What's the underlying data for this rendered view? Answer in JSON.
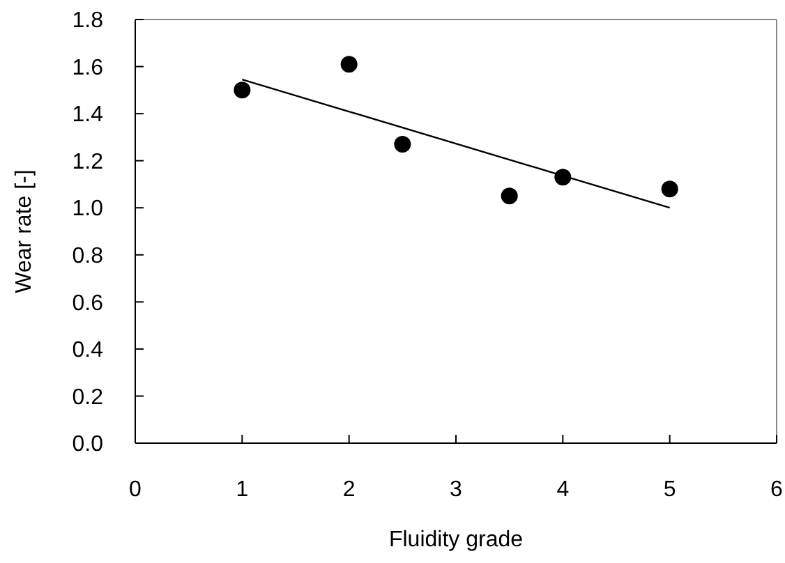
{
  "chart_data": {
    "type": "scatter",
    "xlabel": "Fluidity grade",
    "ylabel": "Wear rate [-]",
    "xlim": [
      0,
      6
    ],
    "ylim": [
      0,
      1.8
    ],
    "xticks": [
      0,
      1,
      2,
      3,
      4,
      5,
      6
    ],
    "yticks": [
      {
        "value": 0,
        "label": "0.0"
      },
      {
        "value": 0.2,
        "label": "0.2"
      },
      {
        "value": 0.4,
        "label": "0.4"
      },
      {
        "value": 0.6,
        "label": "0.6"
      },
      {
        "value": 0.8,
        "label": "0.8"
      },
      {
        "value": 1,
        "label": "1.0"
      },
      {
        "value": 1.2,
        "label": "1.2"
      },
      {
        "value": 1.4,
        "label": "1.4"
      },
      {
        "value": 1.6,
        "label": "1.6"
      },
      {
        "value": 1.8,
        "label": "1.8"
      }
    ],
    "grid": false,
    "marker": "circle",
    "series": [
      {
        "color": "#000000",
        "x": [
          1,
          2,
          2.5,
          3.5,
          4,
          5
        ],
        "values": [
          1.5,
          1.61,
          1.27,
          1.05,
          1.13,
          1.08
        ]
      },
      {
        "type": "line",
        "color": "#000000",
        "marker": "none",
        "x": [
          1,
          5
        ],
        "values": [
          1.545,
          1.0
        ]
      }
    ]
  }
}
